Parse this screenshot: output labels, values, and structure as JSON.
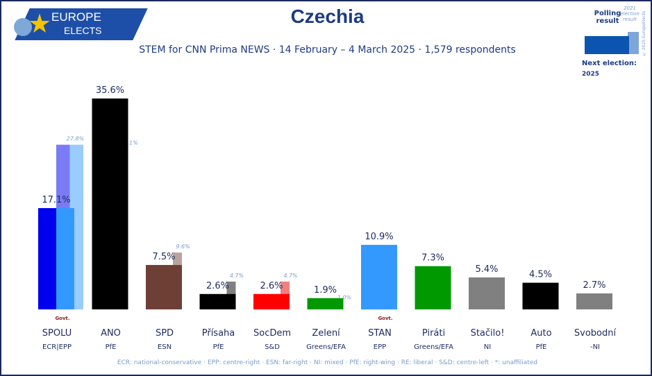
{
  "logo": {
    "line1": "EUROPE",
    "line2": "ELECTS"
  },
  "title": "Czechia",
  "subtitle": "STEM for CNN Prima NEWS · 14 February – 4 March 2025 · 1,579 respondents",
  "legend": {
    "polling": "Polling result",
    "previous": "2021 election result",
    "next_election_label": "Next election:",
    "next_election_year": "2025",
    "copyright": "© 2025 EuropeElects"
  },
  "footnote": "ECR: national-conservative · EPP: centre-right · ESN: far-right · NI: mixed · PfE: right-wing · RE: liberal · S&D: centre-left · *: unaffiliated",
  "chart_data": {
    "type": "bar",
    "title": "Czechia",
    "ylabel": "%",
    "ylim": [
      0,
      36
    ],
    "grid": false,
    "govt_label": "Govt.",
    "parties": [
      {
        "name": "SPOLU",
        "group": "ECR|EPP",
        "value": 17.1,
        "label": "17.1%",
        "prev": 27.8,
        "prev_label": "27.8%",
        "colors": [
          "#0000ee",
          "#3399ff"
        ],
        "prev_colors": [
          "#7b7bf5",
          "#99ccff"
        ],
        "govt": true
      },
      {
        "name": "ANO",
        "group": "PfE",
        "value": 35.6,
        "label": "35.6%",
        "prev": 27.1,
        "prev_label": "27.1%",
        "colors": [
          "#000000"
        ],
        "prev_colors": [
          "#808080"
        ],
        "govt": false
      },
      {
        "name": "SPD",
        "group": "ESN",
        "value": 7.5,
        "label": "7.5%",
        "prev": 9.6,
        "prev_label": "9.6%",
        "colors": [
          "#6e4035"
        ],
        "prev_colors": [
          "#b9a49d"
        ],
        "govt": false
      },
      {
        "name": "Přísaha",
        "group": "PfE",
        "value": 2.6,
        "label": "2.6%",
        "prev": 4.7,
        "prev_label": "4.7%",
        "colors": [
          "#000000"
        ],
        "prev_colors": [
          "#808080"
        ],
        "govt": false
      },
      {
        "name": "SocDem",
        "group": "S&D",
        "value": 2.6,
        "label": "2.6%",
        "prev": 4.7,
        "prev_label": "4.7%",
        "colors": [
          "#ff0000"
        ],
        "prev_colors": [
          "#f08080"
        ],
        "govt": false
      },
      {
        "name": "Zelení",
        "group": "Greens/EFA",
        "value": 1.9,
        "label": "1.9%",
        "prev": 1.0,
        "prev_label": "1.0%",
        "colors": [
          "#009900"
        ],
        "prev_colors": [
          "#80cc80"
        ],
        "govt": false
      },
      {
        "name": "STAN",
        "group": "EPP",
        "value": 10.9,
        "label": "10.9%",
        "prev": null,
        "prev_label": null,
        "colors": [
          "#3399ff"
        ],
        "prev_colors": [],
        "govt": true
      },
      {
        "name": "Piráti",
        "group": "Greens/EFA",
        "value": 7.3,
        "label": "7.3%",
        "prev": null,
        "prev_label": null,
        "colors": [
          "#009900"
        ],
        "prev_colors": [],
        "govt": false
      },
      {
        "name": "Stačilo!",
        "group": "NI",
        "value": 5.4,
        "label": "5.4%",
        "prev": null,
        "prev_label": null,
        "colors": [
          "#808080"
        ],
        "prev_colors": [],
        "govt": false
      },
      {
        "name": "Auto",
        "group": "PfE",
        "value": 4.5,
        "label": "4.5%",
        "prev": null,
        "prev_label": null,
        "colors": [
          "#000000"
        ],
        "prev_colors": [],
        "govt": false
      },
      {
        "name": "Svobodní",
        "group": "-NI",
        "value": 2.7,
        "label": "2.7%",
        "prev": null,
        "prev_label": null,
        "colors": [
          "#808080"
        ],
        "prev_colors": [],
        "govt": false
      }
    ]
  }
}
